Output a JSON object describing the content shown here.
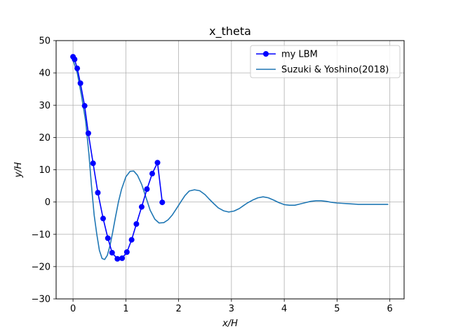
{
  "chart_data": {
    "type": "line",
    "title": "x_theta",
    "xlabel": "x/H",
    "ylabel": "y/H",
    "xlim": [
      -0.32,
      6.27
    ],
    "ylim": [
      -30,
      50
    ],
    "xticks": [
      0,
      1,
      2,
      3,
      4,
      5,
      6
    ],
    "yticks": [
      -30,
      -20,
      -10,
      0,
      10,
      20,
      30,
      40,
      50
    ],
    "xtick_labels": [
      "0",
      "1",
      "2",
      "3",
      "4",
      "5",
      "6"
    ],
    "ytick_labels": [
      "−30",
      "−20",
      "−10",
      "0",
      "10",
      "20",
      "30",
      "40",
      "50"
    ],
    "grid": true,
    "legend": "top-right",
    "colors": {
      "lbm": "#0000ff",
      "ref": "#1f77b4",
      "grid": "#b0b0b0"
    },
    "series": [
      {
        "name": "my LBM",
        "style": "line-marker",
        "x": [
          0.0,
          0.03,
          0.08,
          0.14,
          0.22,
          0.29,
          0.38,
          0.47,
          0.57,
          0.66,
          0.74,
          0.84,
          0.93,
          1.02,
          1.11,
          1.2,
          1.3,
          1.4,
          1.5,
          1.6,
          1.69
        ],
        "y": [
          45.0,
          44.2,
          41.4,
          36.8,
          29.8,
          21.3,
          12.0,
          2.9,
          -5.1,
          -11.2,
          -15.7,
          -17.6,
          -17.4,
          -15.5,
          -11.7,
          -6.8,
          -1.5,
          4.0,
          8.8,
          12.2,
          -0.1
        ]
      },
      {
        "name": "Suzuki & Yoshino(2018)",
        "style": "line",
        "x": [
          0.0,
          0.08,
          0.16,
          0.24,
          0.3,
          0.35,
          0.4,
          0.45,
          0.5,
          0.55,
          0.6,
          0.65,
          0.7,
          0.75,
          0.8,
          0.86,
          0.92,
          1.0,
          1.08,
          1.15,
          1.22,
          1.3,
          1.38,
          1.46,
          1.55,
          1.63,
          1.72,
          1.8,
          1.88,
          1.96,
          2.04,
          2.12,
          2.2,
          2.3,
          2.4,
          2.5,
          2.58,
          2.66,
          2.75,
          2.85,
          2.95,
          3.05,
          3.15,
          3.22,
          3.3,
          3.4,
          3.5,
          3.6,
          3.7,
          3.8,
          3.9,
          4.0,
          4.1,
          4.2,
          4.3,
          4.4,
          4.5,
          4.6,
          4.7,
          4.8,
          4.9,
          5.0,
          5.1,
          5.2,
          5.3,
          5.4,
          5.5,
          5.6,
          5.7,
          5.8,
          5.9,
          5.97
        ],
        "y": [
          44.0,
          40.0,
          33.0,
          25.0,
          15.0,
          5.0,
          -4.0,
          -10.0,
          -15.0,
          -17.5,
          -17.8,
          -16.5,
          -13.5,
          -9.5,
          -5.0,
          0.0,
          4.0,
          7.8,
          9.5,
          9.6,
          8.3,
          5.5,
          1.5,
          -2.5,
          -5.3,
          -6.5,
          -6.4,
          -5.5,
          -4.0,
          -2.0,
          0.0,
          2.0,
          3.4,
          3.8,
          3.5,
          2.3,
          0.9,
          -0.4,
          -1.8,
          -2.7,
          -3.1,
          -2.8,
          -2.0,
          -1.2,
          -0.3,
          0.6,
          1.3,
          1.6,
          1.3,
          0.6,
          -0.2,
          -0.8,
          -1.0,
          -1.0,
          -0.6,
          -0.2,
          0.2,
          0.4,
          0.4,
          0.2,
          -0.1,
          -0.3,
          -0.4,
          -0.5,
          -0.6,
          -0.7,
          -0.7,
          -0.7,
          -0.7,
          -0.7,
          -0.7,
          -0.7
        ]
      }
    ]
  }
}
